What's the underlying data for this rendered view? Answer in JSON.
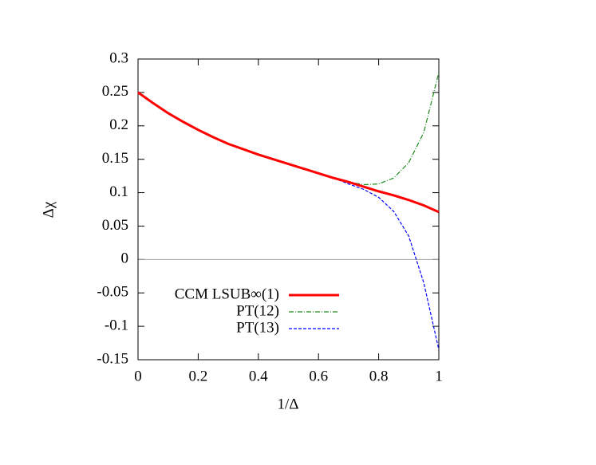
{
  "chart_data": {
    "type": "line",
    "xlabel": "1/Δ",
    "ylabel": "Δχ",
    "x": [
      0,
      0.05,
      0.1,
      0.15,
      0.2,
      0.25,
      0.3,
      0.35,
      0.4,
      0.45,
      0.5,
      0.55,
      0.6,
      0.65,
      0.7,
      0.75,
      0.8,
      0.85,
      0.9,
      0.95,
      1
    ],
    "series": [
      {
        "name": "CCM LSUB∞(1)",
        "color": "#ff0000",
        "dash": "solid",
        "values": [
          0.25,
          0.234,
          0.219,
          0.206,
          0.194,
          0.183,
          0.173,
          0.165,
          0.157,
          0.15,
          0.143,
          0.136,
          0.129,
          0.122,
          0.116,
          0.109,
          0.102,
          0.096,
          0.089,
          0.081,
          0.071
        ]
      },
      {
        "name": "PT(12)",
        "color": "#1f8b1f",
        "dash": "dashdot",
        "values": [
          0.25,
          0.234,
          0.219,
          0.206,
          0.194,
          0.183,
          0.173,
          0.165,
          0.157,
          0.15,
          0.143,
          0.136,
          0.129,
          0.122,
          0.116,
          0.112,
          0.113,
          0.122,
          0.145,
          0.19,
          0.28
        ]
      },
      {
        "name": "PT(13)",
        "color": "#0000ff",
        "dash": "dashed",
        "values": [
          0.25,
          0.234,
          0.219,
          0.206,
          0.194,
          0.183,
          0.173,
          0.165,
          0.157,
          0.15,
          0.143,
          0.136,
          0.129,
          0.122,
          0.113,
          0.105,
          0.093,
          0.072,
          0.035,
          -0.035,
          -0.135
        ]
      }
    ],
    "xlim": [
      0,
      1
    ],
    "xticks": [
      0,
      0.2,
      0.4,
      0.6,
      0.8,
      1
    ],
    "ylim": [
      -0.15,
      0.3
    ],
    "yticks": [
      -0.15,
      -0.1,
      -0.05,
      0,
      0.05,
      0.1,
      0.15,
      0.2,
      0.25,
      0.3
    ],
    "zero_line": true,
    "legend": "lower left"
  }
}
